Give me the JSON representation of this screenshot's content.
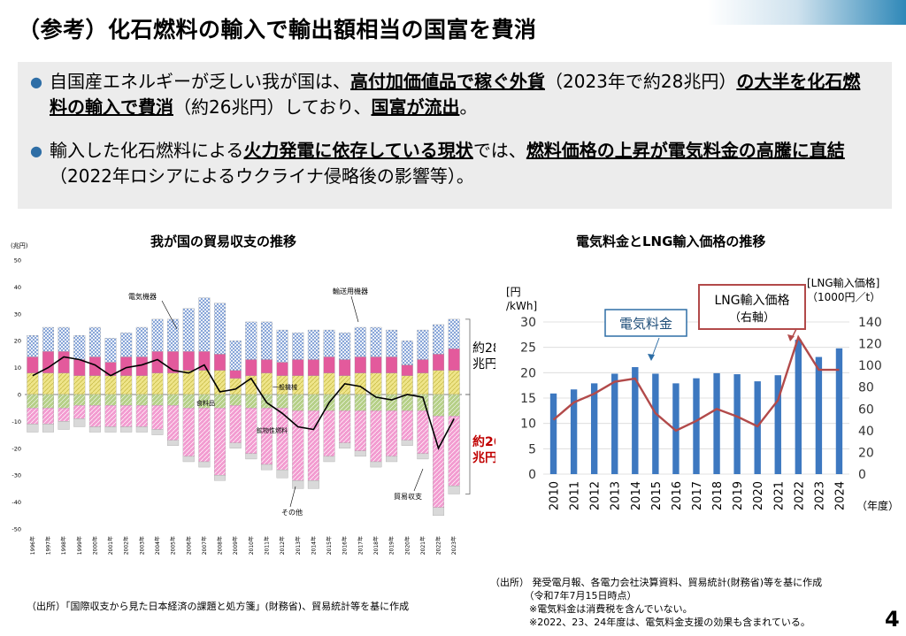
{
  "page_title": "（参考）化石燃料の輸入で輸出額相当の国富を費消",
  "summary": {
    "bullet1": [
      {
        "t": "自国産エネルギーが乏しい我が国は、",
        "b": false
      },
      {
        "t": "高付加価値品で稼ぐ外貨",
        "b": true
      },
      {
        "t": "（2023年で約28兆円）",
        "b": false
      },
      {
        "t": "の大半を化石燃料の輸入で費消",
        "b": true
      },
      {
        "t": "（約26兆円）しており、",
        "b": false
      },
      {
        "t": "国富が流出",
        "b": true
      },
      {
        "t": "。",
        "b": false
      }
    ],
    "bullet2": [
      {
        "t": "輸入した化石燃料による",
        "b": false
      },
      {
        "t": "火力発電に依存している現状",
        "b": true
      },
      {
        "t": "では、",
        "b": false
      },
      {
        "t": "燃料価格の上昇が電気料金の高騰に直結",
        "b": true
      },
      {
        "t": "（2022年ロシアによるウクライナ侵略後の影響等）。",
        "b": false
      }
    ]
  },
  "colors": {
    "electric_machinery": "#6a8fcf",
    "transport_equipment": "#e35a9c",
    "general_machinery": "#efe58a",
    "food": "#b5cf87",
    "mineral_fuel": "#f29bd0",
    "other": "#d9d9d9",
    "balance_line": "#000000",
    "price_bar": "#3d78c0",
    "lng_line": "#b24a4a",
    "red_text": "#c00000"
  },
  "chart_data": [
    {
      "type": "bar",
      "subtype": "stacked-bar-with-line",
      "title": "我が国の貿易収支の推移",
      "unit_label": "(兆円)",
      "ylim": [
        -50,
        50
      ],
      "yticks": [
        50,
        40,
        30,
        20,
        10,
        0,
        -10,
        -20,
        -30,
        -40,
        -50
      ],
      "categories": [
        "1996年",
        "1997年",
        "1998年",
        "1999年",
        "2000年",
        "2001年",
        "2002年",
        "2003年",
        "2004年",
        "2005年",
        "2006年",
        "2007年",
        "2008年",
        "2009年",
        "2010年",
        "2011年",
        "2012年",
        "2013年",
        "2014年",
        "2015年",
        "2016年",
        "2017年",
        "2018年",
        "2019年",
        "2020年",
        "2021年",
        "2022年",
        "2023年"
      ],
      "series_positive": [
        {
          "name": "一般機械",
          "values": [
            8,
            8,
            8,
            7,
            7,
            7,
            7,
            7,
            8,
            8,
            9,
            9,
            9,
            6,
            7,
            8,
            7,
            7,
            7,
            8,
            7,
            8,
            8,
            8,
            7,
            8,
            9,
            9
          ]
        },
        {
          "name": "輸送用機器",
          "values": [
            6,
            8,
            8,
            6,
            7,
            5,
            7,
            7,
            8,
            8,
            7,
            7,
            6,
            3,
            6,
            5,
            5,
            6,
            6,
            6,
            6,
            6,
            6,
            6,
            4,
            5,
            6,
            8
          ]
        },
        {
          "name": "電気機器",
          "values": [
            8,
            9,
            9,
            9,
            11,
            9,
            9,
            11,
            12,
            12,
            16,
            20,
            19,
            11,
            14,
            14,
            12,
            10,
            11,
            10,
            10,
            11,
            11,
            10,
            9,
            11,
            11,
            11
          ]
        }
      ],
      "series_negative": [
        {
          "name": "食料品",
          "values": [
            -5,
            -5,
            -5,
            -4,
            -4,
            -4,
            -4,
            -4,
            -4,
            -4,
            -5,
            -5,
            -5,
            -4,
            -5,
            -5,
            -5,
            -6,
            -6,
            -6,
            -6,
            -6,
            -6,
            -6,
            -6,
            -6,
            -8,
            -8
          ]
        },
        {
          "name": "鉱物性燃料",
          "values": [
            -6,
            -6,
            -5,
            -5,
            -8,
            -8,
            -8,
            -8,
            -9,
            -13,
            -18,
            -20,
            -25,
            -14,
            -17,
            -21,
            -23,
            -26,
            -26,
            -17,
            -12,
            -15,
            -19,
            -17,
            -11,
            -16,
            -34,
            -26
          ]
        },
        {
          "name": "その他",
          "values": [
            -3,
            -3,
            -3,
            -3,
            -2,
            -2,
            -2,
            -2,
            -2,
            -2,
            -2,
            -2,
            -2,
            -2,
            -2,
            -2,
            -3,
            -3,
            -3,
            -2,
            -2,
            -2,
            -2,
            -2,
            -2,
            -2,
            -3,
            -3
          ]
        }
      ],
      "line": {
        "name": "貿易収支",
        "values": [
          7,
          10,
          14,
          13,
          11,
          7,
          10,
          11,
          13,
          9,
          8,
          11,
          1,
          2,
          6,
          -3,
          -7,
          -12,
          -13,
          -3,
          4,
          3,
          -1,
          -2,
          0,
          -1,
          -20,
          -9
        ]
      },
      "annotations": [
        "電気機器",
        "輸送用機器",
        "一般機械",
        "食料品",
        "鉱物性燃料",
        "その他",
        "貿易収支"
      ],
      "bracket_labels": {
        "positive": "約28\n兆円",
        "negative": "約26\n兆円"
      }
    },
    {
      "type": "bar",
      "subtype": "bar-with-line-dual-axis",
      "title": "電気料金とLNG輸入価格の推移",
      "x": [
        "2010",
        "2011",
        "2012",
        "2013",
        "2014",
        "2015",
        "2016",
        "2017",
        "2018",
        "2019",
        "2020",
        "2021",
        "2022",
        "2023",
        "2024"
      ],
      "bar_series": {
        "name": "電気料金",
        "values": [
          15.9,
          16.7,
          17.9,
          19.8,
          21.1,
          19.8,
          17.9,
          18.9,
          19.9,
          19.7,
          18.3,
          19.5,
          26.5,
          23.1,
          24.8
        ]
      },
      "line_series": {
        "name": "LNG輸入価格（右軸）",
        "values": [
          50,
          66,
          74,
          85,
          88,
          56,
          40,
          49,
          60,
          53,
          44,
          68,
          126,
          96,
          96
        ]
      },
      "y_left": {
        "label": "[円\n/kWh]",
        "ylim": [
          0,
          30
        ],
        "ticks": [
          0,
          5,
          10,
          15,
          20,
          25,
          30
        ]
      },
      "y_right": {
        "label": "[LNG輸入価格]\n（1000円／t）",
        "ylim": [
          0,
          140
        ],
        "ticks": [
          0,
          20,
          40,
          60,
          80,
          100,
          120,
          140
        ]
      },
      "x_unit": "（年度）",
      "callouts": {
        "bar": "電気料金",
        "line": "LNG輸入価格\n（右軸）"
      }
    }
  ],
  "source_left": "（出所）「国際収支から見た日本経済の課題と処方箋」(財務省)、貿易統計等を基に作成",
  "source_right": [
    "（出所） 発受電月報、各電力会社決算資料、貿易統計(財務省)等を基に作成",
    "　　　　（令和7年7月15日時点）",
    "　　　　※電気料金は消費税を含んでいない。",
    "　　　　※2022、23、24年度は、電気料金支援の効果も含まれている。"
  ],
  "page_number": "4"
}
